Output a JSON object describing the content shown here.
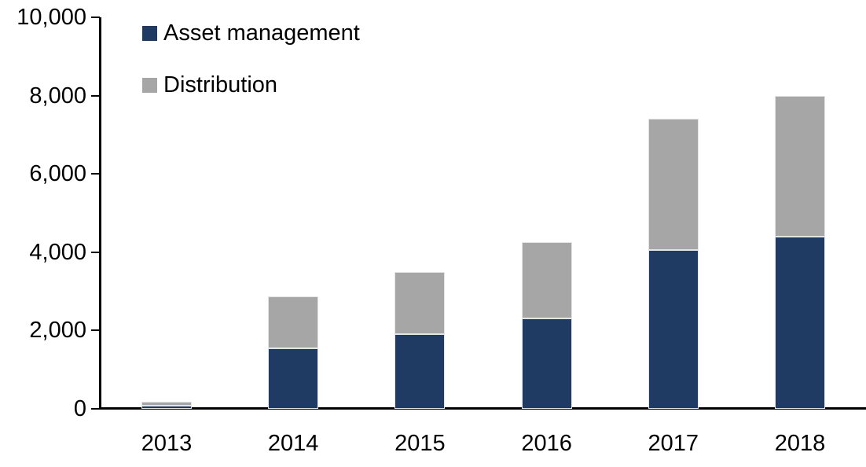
{
  "chart_data": {
    "type": "bar",
    "subtype": "stacked",
    "title": "",
    "xlabel": "",
    "ylabel": "",
    "categories": [
      "2013",
      "2014",
      "2015",
      "2016",
      "2017",
      "2018"
    ],
    "series": [
      {
        "name": "Asset management",
        "color": "#1F3A63",
        "values": [
          75,
          1550,
          1900,
          2300,
          4050,
          4400
        ]
      },
      {
        "name": "Distribution",
        "color": "#A6A6A6",
        "values": [
          115,
          1320,
          1600,
          1950,
          3350,
          3600
        ]
      }
    ],
    "totals": [
      190,
      2870,
      3500,
      4250,
      7400,
      8000
    ],
    "ylim": [
      0,
      10000
    ],
    "ytick_values": [
      0,
      2000,
      4000,
      6000,
      8000,
      10000
    ],
    "ytick_labels": [
      "0",
      "2,000",
      "4,000",
      "6,000",
      "8,000",
      "10,000"
    ],
    "grid": "off",
    "legend_position": "top-left-inside",
    "axis_color": "#000000"
  }
}
